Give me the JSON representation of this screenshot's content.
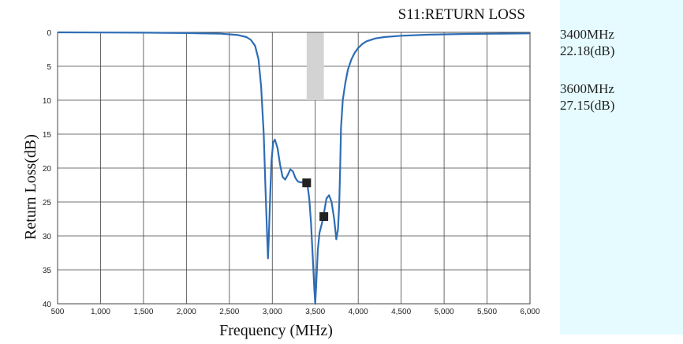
{
  "chart_data": {
    "type": "line",
    "title": "S11:RETURN LOSS",
    "xlabel": "Frequency (MHz)",
    "ylabel": "Return Loss(dB)",
    "xlim": [
      500,
      6000
    ],
    "ylim": [
      0,
      40
    ],
    "y_inverted": true,
    "grid": true,
    "x_ticks": [
      "500",
      "1,000",
      "1,500",
      "2,000",
      "2,500",
      "3,000",
      "3,500",
      "4,000",
      "4,500",
      "5,000",
      "5,500",
      "6,000"
    ],
    "x_tick_values": [
      500,
      1000,
      1500,
      2000,
      2500,
      3000,
      3500,
      4000,
      4500,
      5000,
      5500,
      6000
    ],
    "y_ticks": [
      "0",
      "5",
      "10",
      "15",
      "20",
      "25",
      "30",
      "35",
      "40"
    ],
    "y_tick_values": [
      0,
      5,
      10,
      15,
      20,
      25,
      30,
      35,
      40
    ],
    "band": {
      "x_from": 3400,
      "x_to": 3600,
      "y_from": 0,
      "y_to": 10,
      "color": "#d3d3d3"
    },
    "series": [
      {
        "color": "#2e6db5",
        "x": [
          500,
          1500,
          2000,
          2400,
          2600,
          2700,
          2750,
          2800,
          2840,
          2870,
          2900,
          2920,
          2940,
          2950,
          2960,
          2975,
          2990,
          3010,
          3030,
          3060,
          3090,
          3120,
          3150,
          3180,
          3210,
          3240,
          3270,
          3300,
          3330,
          3360,
          3390,
          3410,
          3430,
          3450,
          3470,
          3490,
          3500,
          3510,
          3530,
          3550,
          3570,
          3590,
          3610,
          3630,
          3660,
          3690,
          3720,
          3745,
          3765,
          3780,
          3790,
          3800,
          3820,
          3850,
          3880,
          3920,
          3960,
          4000,
          4050,
          4100,
          4200,
          4300,
          4500,
          4800,
          5200,
          5600,
          6000
        ],
        "y": [
          0,
          0.05,
          0.1,
          0.2,
          0.4,
          0.7,
          1.1,
          2.0,
          4.0,
          8.0,
          15.0,
          23.0,
          30.0,
          33.3,
          30.0,
          24.0,
          19.0,
          16.2,
          15.8,
          17.0,
          19.5,
          21.3,
          21.7,
          21.0,
          20.2,
          20.5,
          21.5,
          22.0,
          22.1,
          22.1,
          22.15,
          22.5,
          24.5,
          28.0,
          33.0,
          38.0,
          40.0,
          37.5,
          32.0,
          29.5,
          28.5,
          27.5,
          26.0,
          24.5,
          24.0,
          25.0,
          27.5,
          30.5,
          29.0,
          25.0,
          20.0,
          14.0,
          10.0,
          7.5,
          5.5,
          4.0,
          3.0,
          2.3,
          1.7,
          1.3,
          0.9,
          0.7,
          0.5,
          0.35,
          0.25,
          0.2,
          0.15
        ]
      }
    ],
    "markers": [
      {
        "x": 3400,
        "y": 22.18
      },
      {
        "x": 3600,
        "y": 27.15
      }
    ]
  },
  "readouts": [
    {
      "freq": "3400MHz",
      "value": "22.18(dB)"
    },
    {
      "freq": "3600MHz",
      "value": "27.15(dB)"
    }
  ]
}
